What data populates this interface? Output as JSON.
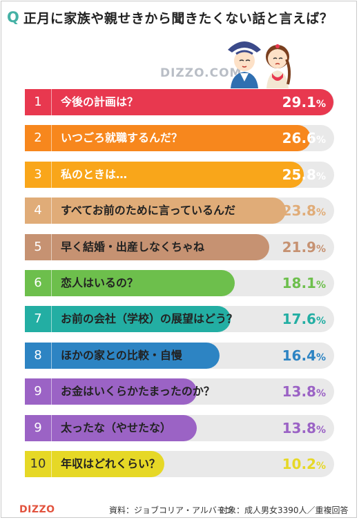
{
  "header": {
    "q_mark": "Q",
    "title": "正月に家族や親せきから聞きたくない話と言えば？"
  },
  "watermark": "DIZZO.COM",
  "footer": {
    "logo": "DIZZO",
    "source": "資料：ジョブコリア・アルバモン",
    "target": "対象：成人男女3390人／重複回答"
  },
  "colors": {
    "track": "#e9e9e9",
    "q_mark": "#45b1a5"
  },
  "chart_data": {
    "type": "bar",
    "orientation": "horizontal",
    "unit": "%",
    "xlim": [
      0,
      100
    ],
    "bars": [
      {
        "rank": "1",
        "label": "今後の計画は？",
        "value": 29.1,
        "value_text": "29.1",
        "color": "#e8384f",
        "on_bar": true
      },
      {
        "rank": "2",
        "label": "いつごろ就職するんだ？",
        "value": 26.6,
        "value_text": "26.6",
        "color": "#f7871d",
        "on_bar": true
      },
      {
        "rank": "3",
        "label": "私のときは…",
        "value": 25.8,
        "value_text": "25.8",
        "color": "#f9a61a",
        "on_bar": true
      },
      {
        "rank": "4",
        "label": "すべてお前のために言っているんだ",
        "value": 23.8,
        "value_text": "23.8",
        "color": "#e0ac78",
        "on_bar": false
      },
      {
        "rank": "5",
        "label": "早く結婚・出産しなくちゃね",
        "value": 21.9,
        "value_text": "21.9",
        "color": "#c69272",
        "on_bar": false
      },
      {
        "rank": "6",
        "label": "恋人はいるの？",
        "value": 18.1,
        "value_text": "18.1",
        "color": "#6dbf4c",
        "on_bar": false
      },
      {
        "rank": "7",
        "label": "お前の会社（学校）の展望はどう？",
        "value": 17.6,
        "value_text": "17.6",
        "color": "#23aea3",
        "on_bar": false
      },
      {
        "rank": "8",
        "label": "ほかの家との比較・自慢",
        "value": 16.4,
        "value_text": "16.4",
        "color": "#2d84c3",
        "on_bar": false
      },
      {
        "rank": "9",
        "label": "お金はいくらかたまったのか？",
        "value": 13.8,
        "value_text": "13.8",
        "color": "#9b63c5",
        "on_bar": false
      },
      {
        "rank": "9",
        "label": "太ったな（やせたな）",
        "value": 13.8,
        "value_text": "13.8",
        "color": "#9b63c5",
        "on_bar": false
      },
      {
        "rank": "10",
        "label": "年収はどれくらい？",
        "value": 10.2,
        "value_text": "10.2",
        "color": "#e6d826",
        "on_bar": false
      }
    ]
  }
}
